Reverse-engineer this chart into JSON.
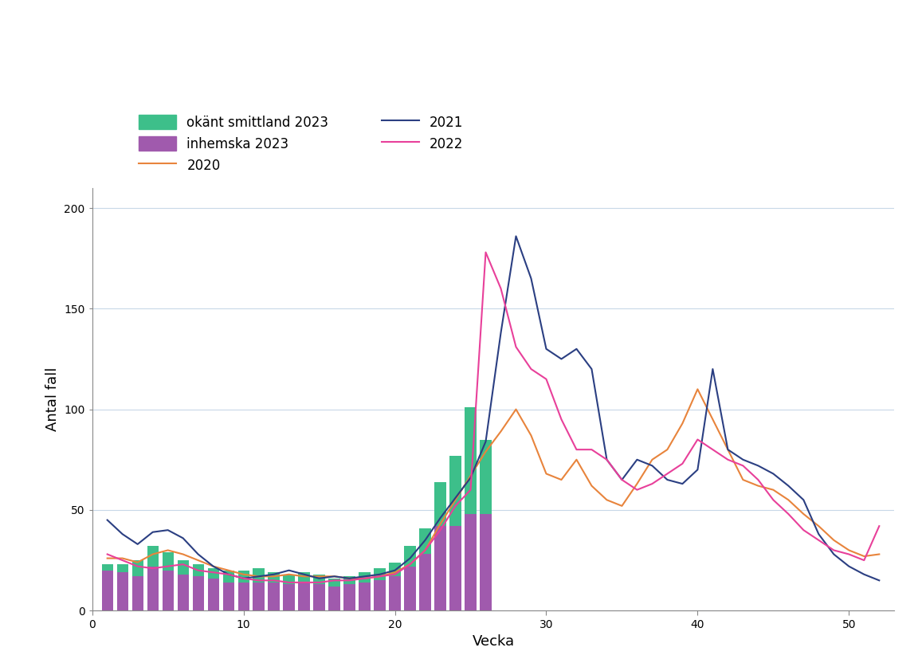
{
  "weeks_bar": [
    1,
    2,
    3,
    4,
    5,
    6,
    7,
    8,
    9,
    10,
    11,
    12,
    13,
    14,
    15,
    16,
    17,
    18,
    19,
    20,
    21,
    22,
    23,
    24,
    25,
    26
  ],
  "inhemska_2023": [
    20,
    19,
    17,
    22,
    20,
    18,
    17,
    16,
    14,
    14,
    14,
    14,
    13,
    14,
    13,
    12,
    13,
    14,
    15,
    17,
    22,
    28,
    42,
    42,
    48,
    48
  ],
  "okant_2023": [
    3,
    4,
    8,
    10,
    9,
    7,
    6,
    5,
    6,
    6,
    7,
    5,
    5,
    5,
    5,
    4,
    4,
    5,
    6,
    7,
    10,
    13,
    22,
    35,
    53,
    37
  ],
  "weeks_lines": [
    1,
    2,
    3,
    4,
    5,
    6,
    7,
    8,
    9,
    10,
    11,
    12,
    13,
    14,
    15,
    16,
    17,
    18,
    19,
    20,
    21,
    22,
    23,
    24,
    25,
    26,
    27,
    28,
    29,
    30,
    31,
    32,
    33,
    34,
    35,
    36,
    37,
    38,
    39,
    40,
    41,
    42,
    43,
    44,
    45,
    46,
    47,
    48,
    49,
    50,
    51,
    52
  ],
  "y2020": [
    26,
    26,
    24,
    28,
    30,
    28,
    25,
    22,
    20,
    18,
    17,
    17,
    18,
    17,
    17,
    17,
    16,
    16,
    17,
    19,
    23,
    30,
    43,
    55,
    67,
    79,
    89,
    100,
    87,
    68,
    65,
    75,
    62,
    55,
    52,
    63,
    75,
    80,
    93,
    110,
    95,
    80,
    65,
    62,
    60,
    55,
    48,
    42,
    35,
    30,
    27,
    28
  ],
  "y2021": [
    45,
    38,
    33,
    39,
    40,
    36,
    28,
    22,
    18,
    16,
    17,
    18,
    20,
    18,
    16,
    17,
    16,
    17,
    18,
    20,
    26,
    35,
    46,
    56,
    66,
    84,
    138,
    186,
    165,
    130,
    125,
    130,
    120,
    75,
    65,
    75,
    72,
    65,
    63,
    70,
    120,
    80,
    75,
    72,
    68,
    62,
    55,
    38,
    28,
    22,
    18,
    15
  ],
  "y2022": [
    28,
    25,
    22,
    21,
    22,
    23,
    20,
    19,
    18,
    16,
    15,
    15,
    14,
    14,
    14,
    15,
    15,
    16,
    17,
    18,
    23,
    30,
    40,
    52,
    60,
    178,
    160,
    131,
    120,
    115,
    95,
    80,
    80,
    75,
    65,
    60,
    63,
    68,
    73,
    85,
    80,
    75,
    72,
    65,
    55,
    48,
    40,
    35,
    30,
    28,
    25,
    42
  ],
  "color_okant": "#3dbf8a",
  "color_inhemska": "#a05aad",
  "color_2020": "#e8843c",
  "color_2021": "#2b3f82",
  "color_2022": "#e8409a",
  "ylabel": "Antal fall",
  "xlabel": "Vecka",
  "ylim": [
    0,
    210
  ],
  "xlim": [
    0,
    53
  ],
  "yticks": [
    0,
    50,
    100,
    150,
    200
  ],
  "xticks": [
    0,
    10,
    20,
    30,
    40,
    50
  ],
  "legend_labels": [
    "okänt smittland 2023",
    "inhemska 2023",
    "2020",
    "2021",
    "2022"
  ]
}
